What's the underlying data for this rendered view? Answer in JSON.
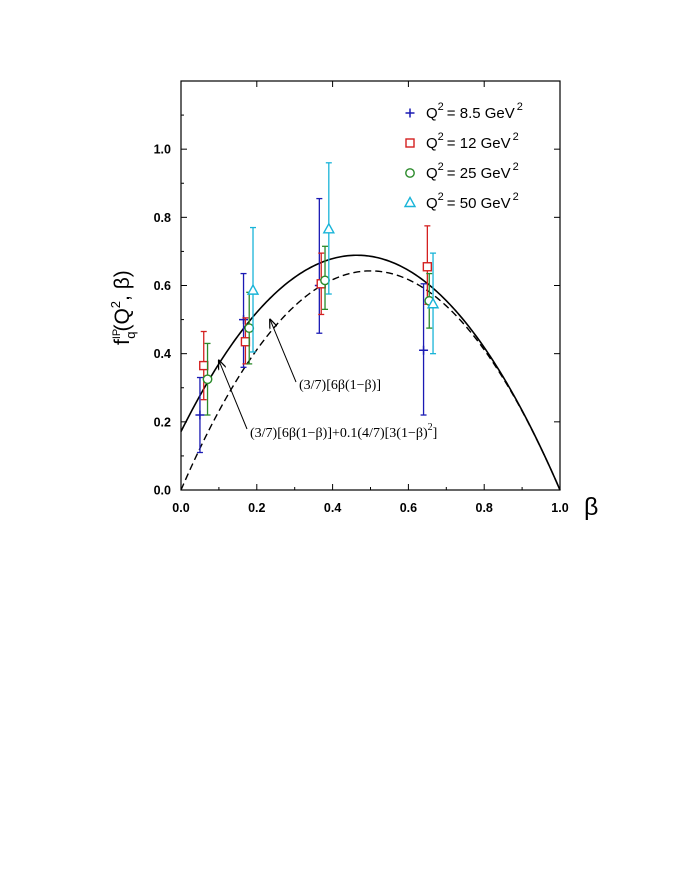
{
  "chart_data": {
    "type": "scatter",
    "xlabel": "β",
    "ylabel": {
      "base": "f",
      "superscript": "IP",
      "subscript": "q",
      "arg_before": "(Q",
      "arg_sup": "2",
      "arg_after": ", β)"
    },
    "xlim": [
      0.0,
      1.0
    ],
    "ylim": [
      0.0,
      1.2
    ],
    "x_ticks": [
      0.0,
      0.2,
      0.4,
      0.6,
      0.8,
      1.0
    ],
    "x_tick_labels": [
      "0.0",
      "0.2",
      "0.4",
      "0.6",
      "0.8",
      "1.0"
    ],
    "y_ticks": [
      0.0,
      0.2,
      0.4,
      0.6,
      0.8,
      1.0
    ],
    "y_tick_labels": [
      "0.0",
      "0.2",
      "0.4",
      "0.6",
      "0.8",
      "1.0"
    ],
    "grid": false,
    "legend_position": "top-right",
    "series": [
      {
        "name": "Q² = 8.5 GeV²",
        "label_base": "Q",
        "label_mid": "= 8.5 GeV",
        "sup": "2",
        "marker": "plus",
        "color": "#1a1ab4",
        "points": [
          {
            "x": 0.05,
            "y": 0.22,
            "ylo": 0.11,
            "yhi": 0.33
          },
          {
            "x": 0.165,
            "y": 0.5,
            "ylo": 0.36,
            "yhi": 0.635
          },
          {
            "x": 0.365,
            "y": 0.6,
            "ylo": 0.46,
            "yhi": 0.855
          },
          {
            "x": 0.64,
            "y": 0.41,
            "ylo": 0.22,
            "yhi": 0.605
          }
        ]
      },
      {
        "name": "Q² = 12 GeV²",
        "label_base": "Q",
        "label_mid": "= 12 GeV",
        "sup": "2",
        "marker": "square",
        "color": "#d42020",
        "points": [
          {
            "x": 0.06,
            "y": 0.365,
            "ylo": 0.265,
            "yhi": 0.465
          },
          {
            "x": 0.17,
            "y": 0.435,
            "ylo": 0.37,
            "yhi": 0.505
          },
          {
            "x": 0.37,
            "y": 0.605,
            "ylo": 0.515,
            "yhi": 0.695
          },
          {
            "x": 0.65,
            "y": 0.655,
            "ylo": 0.545,
            "yhi": 0.775
          }
        ]
      },
      {
        "name": "Q² = 25 GeV²",
        "label_base": "Q",
        "label_mid": "= 25 GeV",
        "sup": "2",
        "marker": "circle",
        "color": "#2a8a2a",
        "points": [
          {
            "x": 0.07,
            "y": 0.325,
            "ylo": 0.22,
            "yhi": 0.43
          },
          {
            "x": 0.18,
            "y": 0.475,
            "ylo": 0.37,
            "yhi": 0.58
          },
          {
            "x": 0.38,
            "y": 0.615,
            "ylo": 0.53,
            "yhi": 0.715
          },
          {
            "x": 0.655,
            "y": 0.555,
            "ylo": 0.475,
            "yhi": 0.635
          }
        ]
      },
      {
        "name": "Q² = 50 GeV²",
        "label_base": "Q",
        "label_mid": "= 50 GeV",
        "sup": "2",
        "marker": "triangle",
        "color": "#19b4d8",
        "points": [
          {
            "x": 0.19,
            "y": 0.585,
            "ylo": 0.405,
            "yhi": 0.77
          },
          {
            "x": 0.39,
            "y": 0.765,
            "ylo": 0.575,
            "yhi": 0.96
          },
          {
            "x": 0.665,
            "y": 0.545,
            "ylo": 0.4,
            "yhi": 0.695
          }
        ]
      }
    ],
    "curves": [
      {
        "id": "solid",
        "style": "solid",
        "formula": "(3/7)[6β(1−β)]+0.1(4/7)[3(1−β)²]"
      },
      {
        "id": "dashed",
        "style": "dashed",
        "formula": "(3/7)[6β(1−β)]"
      }
    ],
    "annotations": [
      {
        "text": "(3/7)[6β(1−β)]",
        "points_to_x": 0.235,
        "points_to_y": 0.5
      },
      {
        "text": "(3/7)[6β(1−β)]+0.1(4/7)[3(1−β)",
        "sup": "2",
        "tail": "]",
        "points_to_x": 0.1,
        "points_to_y": 0.38
      }
    ]
  }
}
